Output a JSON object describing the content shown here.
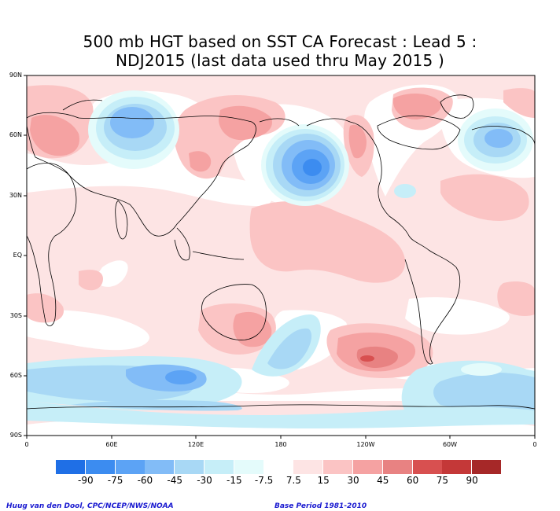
{
  "title": {
    "line1": "500 mb HGT based on SST CA Forecast : Lead 5 :",
    "line2": "NDJ2015 (last data used thru May 2015 )"
  },
  "map": {
    "lat_labels": [
      "90N",
      "60N",
      "30N",
      "EQ",
      "30S",
      "60S",
      "90S"
    ],
    "lon_labels": [
      "0",
      "60E",
      "120E",
      "180",
      "120W",
      "60W",
      "0"
    ],
    "features": [
      {
        "name": "strong-negative-anomaly-north-pacific",
        "value": -60,
        "lon": 188,
        "lat": 45
      },
      {
        "name": "negative-anomaly-siberia",
        "value": -30,
        "lon": 75,
        "lat": 60
      },
      {
        "name": "negative-anomaly-north-atlantic",
        "value": -30,
        "lon": 335,
        "lat": 58
      },
      {
        "name": "negative-anomaly-southern-ocean-indian",
        "value": -30,
        "lon": 115,
        "lat": -58
      },
      {
        "name": "negative-anomaly-south-pacific",
        "value": -15,
        "lon": 185,
        "lat": -45
      },
      {
        "name": "positive-anomaly-south-pacific",
        "value": 30,
        "lon": 237,
        "lat": -52
      },
      {
        "name": "positive-anomaly-east-australia",
        "value": 30,
        "lon": 155,
        "lat": -35
      }
    ]
  },
  "colorbar": {
    "labels": [
      "-90",
      "-75",
      "-60",
      "-45",
      "-30",
      "-15",
      "-7.5",
      "7.5",
      "15",
      "30",
      "45",
      "60",
      "75",
      "90"
    ],
    "colors": [
      "#1f6fe6",
      "#3c8cf0",
      "#5ca3f5",
      "#82bcf7",
      "#a8d8f5",
      "#c6eef8",
      "#e4fbfb",
      "#ffffff",
      "#fde4e4",
      "#fbc4c4",
      "#f5a2a2",
      "#e88282",
      "#d85050",
      "#c43838",
      "#a62828"
    ]
  },
  "credits": {
    "left": "Huug van den Dool, CPC/NCEP/NWS/NOAA",
    "right": "Base Period 1981-2010"
  }
}
